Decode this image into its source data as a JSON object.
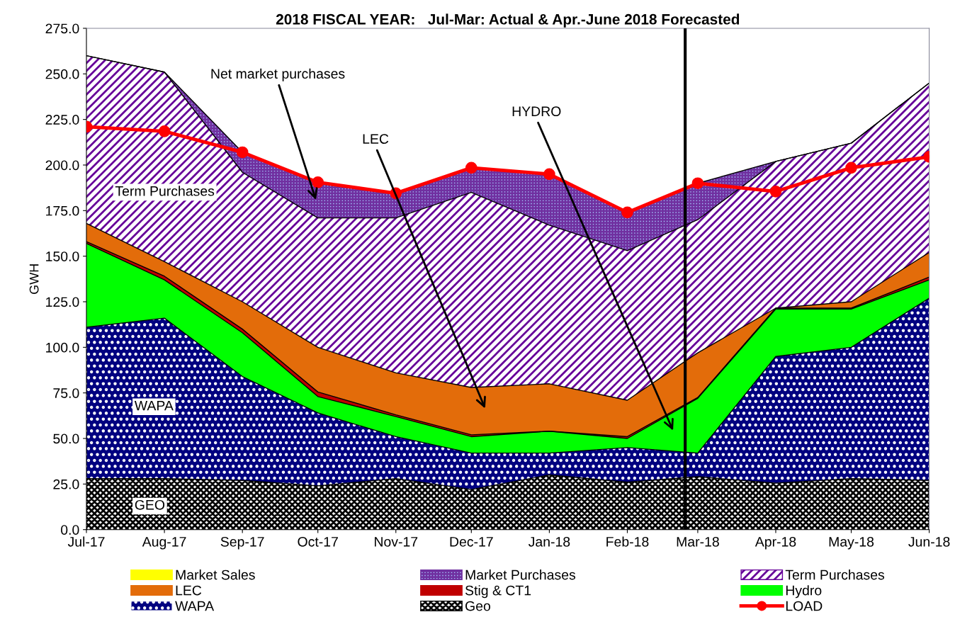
{
  "chart_data": {
    "type": "area",
    "stacked": true,
    "title": "2018 FISCAL YEAR:   Jul-Mar: Actual & Apr.-June 2018 Forecasted",
    "ylabel": "GWH",
    "x": [
      "2017-07-01",
      "2017-08-01",
      "2017-09-01",
      "2017-10-01",
      "2017-11-01",
      "2017-12-01",
      "2018-01-01",
      "2018-02-01",
      "2018-03-01",
      "2018-04-01",
      "2018-05-01",
      "2018-06-01"
    ],
    "xlim": [
      "2017-07-01",
      "2018-06-01"
    ],
    "xticks": [
      {
        "value": "2017-07-01",
        "label": "Jul-17"
      },
      {
        "value": "2017-08-01",
        "label": "Aug-17"
      },
      {
        "value": "2017-09-01",
        "label": "Sep-17"
      },
      {
        "value": "2017-10-01",
        "label": "Oct-17"
      },
      {
        "value": "2017-11-01",
        "label": "Nov-17"
      },
      {
        "value": "2017-12-01",
        "label": "Dec-17"
      },
      {
        "value": "2018-01-01",
        "label": "Jan-18"
      },
      {
        "value": "2018-02-01",
        "label": "Feb-18"
      },
      {
        "value": "2018-03-01",
        "label": "Mar-18"
      },
      {
        "value": "2018-04-01",
        "label": "Apr-18"
      },
      {
        "value": "2018-05-01",
        "label": "May-18"
      },
      {
        "value": "2018-06-01",
        "label": "Jun-18"
      }
    ],
    "ylim": [
      0,
      275
    ],
    "yticks": [
      {
        "value": 0,
        "label": "0.0"
      },
      {
        "value": 25,
        "label": "25.0"
      },
      {
        "value": 50,
        "label": "50.0"
      },
      {
        "value": 75,
        "label": "75.0"
      },
      {
        "value": 100,
        "label": "100.0"
      },
      {
        "value": 125,
        "label": "125.0"
      },
      {
        "value": 150,
        "label": "150.0"
      },
      {
        "value": 175,
        "label": "175.0"
      },
      {
        "value": 200,
        "label": "200.0"
      },
      {
        "value": 225,
        "label": "225.0"
      },
      {
        "value": 250,
        "label": "250.0"
      },
      {
        "value": 275,
        "label": "275.0"
      }
    ],
    "grid": false,
    "legend": "bottom",
    "series": [
      {
        "name": "Geo",
        "color": "#000000",
        "values": [
          28,
          28,
          27,
          24,
          28,
          22,
          30,
          26,
          29,
          25.5,
          28,
          27
        ]
      },
      {
        "name": "WAPA",
        "color": "#000080",
        "values": [
          83,
          88,
          57,
          40,
          23,
          20,
          12,
          19,
          13,
          69.5,
          72,
          100
        ]
      },
      {
        "name": "Hydro",
        "color": "#00ff00",
        "values": [
          46,
          21,
          24,
          9,
          11,
          9,
          12,
          5,
          30,
          26,
          21,
          10
        ]
      },
      {
        "name": "Stig & CT1",
        "color": "#c00000",
        "values": [
          1,
          2,
          2,
          2.5,
          1,
          1,
          0,
          1,
          0.5,
          0.5,
          0.5,
          1.5
        ]
      },
      {
        "name": "LEC",
        "color": "#e36c0a",
        "values": [
          10,
          8,
          15,
          24.5,
          23,
          26,
          26,
          20,
          24.5,
          0,
          3.5,
          13.5
        ]
      },
      {
        "name": "Term Purchases",
        "color": "#660099",
        "values": [
          92,
          104,
          71,
          71,
          85,
          107,
          87,
          82,
          73,
          80.5,
          87,
          93
        ]
      },
      {
        "name": "Market Purchases",
        "color": "#7030a0",
        "values": [
          0,
          0,
          11,
          19,
          13,
          13,
          28,
          21,
          20,
          0,
          0,
          0
        ]
      },
      {
        "name": "Market Sales",
        "color": "#ffff00",
        "values": [
          null,
          null,
          null,
          null,
          null,
          null,
          null,
          null,
          null,
          null,
          null,
          null
        ]
      },
      {
        "name": "LOAD",
        "type": "line",
        "color": "#ff0000",
        "marker": "circle",
        "values": [
          221,
          218.5,
          207,
          190.5,
          184.5,
          198.5,
          195,
          174,
          190,
          185.5,
          198.5,
          204.5
        ]
      }
    ],
    "ref_lines": [
      {
        "axis": "x",
        "value": "2018-02-24",
        "color": "#000000",
        "line_style": "solid"
      }
    ],
    "annotations": [
      "Net market purchases",
      "LEC",
      "HYDRO",
      "Term Purchases",
      "WAPA",
      "GEO"
    ]
  }
}
